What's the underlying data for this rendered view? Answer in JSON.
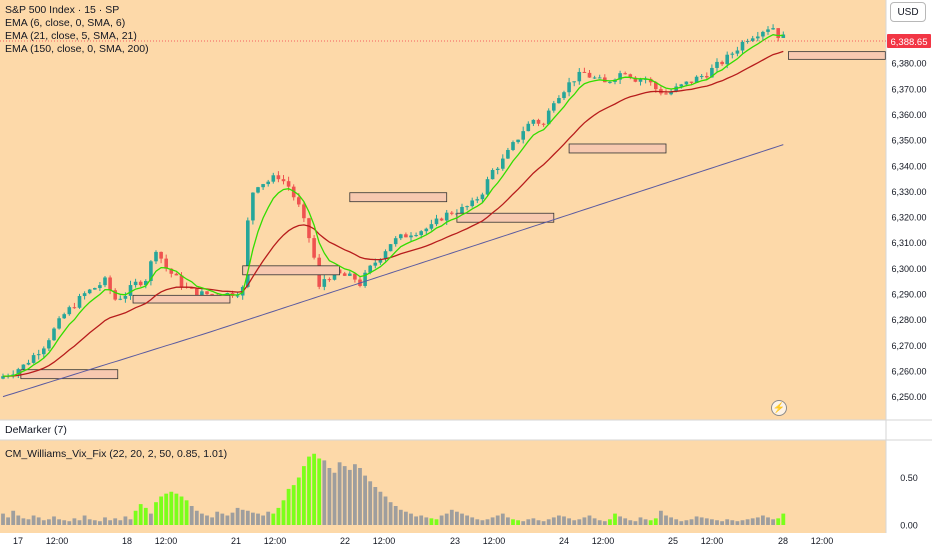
{
  "legend": {
    "symbol": "S&P 500 Index · 15 · SP",
    "ema_fast": "EMA (6, close, 0, SMA, 6)",
    "ema_mid": "EMA (21, close, 5, SMA, 21)",
    "ema_slow": "EMA (150, close, 0, SMA, 200)",
    "demarker": "DeMarker (7)",
    "vix_fix": "CM_Williams_Vix_Fix (22, 20, 2, 50, 0.85, 1.01)"
  },
  "currency_button": "USD",
  "bolt_icon": "lightning-icon",
  "colors": {
    "background": "#fdd9a9",
    "panel_background": "#ffffff",
    "up_candle": "#26a69a",
    "down_candle": "#ef5350",
    "ema_fast": "#33dd00",
    "ema_mid": "#b71c1c",
    "ema_slow": "#5a5aa0",
    "zone_fill": "#f7c9b0",
    "vix_gray": "#9e9e9e",
    "vix_green": "#7bff1a",
    "price_badge": "#f23645"
  },
  "chart_data": [
    {
      "type": "candlestick",
      "title": "S&P 500 Index · 15 · SP",
      "x_ticks": [
        "17",
        "12:00",
        "18",
        "12:00",
        "21",
        "12:00",
        "22",
        "12:00",
        "23",
        "12:00",
        "24",
        "12:00",
        "25",
        "12:00",
        "28",
        "12:00"
      ],
      "y_ticks": [
        "6,380.00",
        "6,370.00",
        "6,360.00",
        "6,350.00",
        "6,340.00",
        "6,330.00",
        "6,320.00",
        "6,310.00",
        "6,300.00",
        "6,290.00",
        "6,280.00",
        "6,270.00",
        "6,260.00",
        "6,250.00"
      ],
      "ylim": [
        6244,
        6400
      ],
      "last_price": "6,388.65",
      "price_path": [
        [
          0,
          6258
        ],
        [
          4,
          6262
        ],
        [
          8,
          6270
        ],
        [
          12,
          6282
        ],
        [
          16,
          6290
        ],
        [
          20,
          6295
        ],
        [
          22,
          6288
        ],
        [
          24,
          6290
        ],
        [
          26,
          6294
        ],
        [
          28,
          6296
        ],
        [
          30,
          6308
        ],
        [
          32,
          6300
        ],
        [
          34,
          6296
        ],
        [
          36,
          6292
        ],
        [
          38,
          6290
        ],
        [
          40,
          6290
        ],
        [
          42,
          6289
        ],
        [
          44,
          6290
        ],
        [
          46,
          6291
        ],
        [
          47,
          6292
        ],
        [
          48,
          6318
        ],
        [
          49,
          6330
        ],
        [
          50,
          6333
        ],
        [
          52,
          6334
        ],
        [
          54,
          6336
        ],
        [
          56,
          6332
        ],
        [
          58,
          6324
        ],
        [
          60,
          6312
        ],
        [
          61,
          6304
        ],
        [
          62,
          6292
        ],
        [
          63,
          6296
        ],
        [
          65,
          6298
        ],
        [
          67,
          6297
        ],
        [
          69,
          6296
        ],
        [
          70,
          6294
        ],
        [
          72,
          6300
        ],
        [
          74,
          6305
        ],
        [
          76,
          6310
        ],
        [
          78,
          6312
        ],
        [
          80,
          6314
        ],
        [
          84,
          6316
        ],
        [
          86,
          6320
        ],
        [
          88,
          6322
        ],
        [
          90,
          6323
        ],
        [
          92,
          6325
        ],
        [
          94,
          6330
        ],
        [
          96,
          6338
        ],
        [
          98,
          6342
        ],
        [
          100,
          6348
        ],
        [
          102,
          6354
        ],
        [
          104,
          6358
        ],
        [
          106,
          6356
        ],
        [
          108,
          6366
        ],
        [
          110,
          6370
        ],
        [
          112,
          6374
        ],
        [
          114,
          6376
        ],
        [
          116,
          6374
        ],
        [
          118,
          6372
        ],
        [
          120,
          6375
        ],
        [
          122,
          6377
        ],
        [
          124,
          6374
        ],
        [
          126,
          6374
        ],
        [
          128,
          6370
        ],
        [
          130,
          6368
        ],
        [
          132,
          6370
        ],
        [
          134,
          6372
        ],
        [
          136,
          6374
        ],
        [
          138,
          6376
        ],
        [
          140,
          6379
        ],
        [
          142,
          6382
        ],
        [
          144,
          6386
        ],
        [
          146,
          6390
        ],
        [
          148,
          6392
        ],
        [
          150,
          6394
        ],
        [
          151,
          6394
        ],
        [
          152,
          6391
        ],
        [
          153,
          6390
        ]
      ],
      "series": [
        {
          "name": "EMA (6, close, 0, SMA, 6)",
          "color": "#33dd00"
        },
        {
          "name": "EMA (21, close, 5, SMA, 21)",
          "color": "#b71c1c"
        },
        {
          "name": "EMA (150, close, 0, SMA, 200)",
          "color": "#5a5aa0"
        }
      ],
      "zones": [
        {
          "date_start": "17",
          "x0": 3.5,
          "x1": 22.5,
          "low": 6257,
          "high": 6260.5
        },
        {
          "date_start": "18",
          "x0": 25.5,
          "x1": 44.5,
          "low": 6286.5,
          "high": 6289.5
        },
        {
          "date_start": "21",
          "x0": 47,
          "x1": 66,
          "low": 6297.5,
          "high": 6301
        },
        {
          "date_start": "22",
          "x0": 68,
          "x1": 87,
          "low": 6326,
          "high": 6329.5
        },
        {
          "date_start": "23",
          "x0": 89,
          "x1": 108,
          "low": 6318,
          "high": 6321.5
        },
        {
          "date_start": "24",
          "x0": 111,
          "x1": 130,
          "low": 6345,
          "high": 6348.5
        },
        {
          "date_start": "28",
          "x0": 154,
          "x1": 173,
          "low": 6381.5,
          "high": 6384.5
        }
      ]
    },
    {
      "type": "bar",
      "title": "CM_Williams_Vix_Fix (22, 20, 2, 50, 0.85, 1.01)",
      "y_ticks": [
        "0.50",
        "0.00"
      ],
      "ylim": [
        0,
        0.85
      ],
      "values": [
        0.12,
        0.08,
        0.15,
        0.1,
        0.07,
        0.06,
        0.1,
        0.08,
        0.05,
        0.06,
        0.09,
        0.06,
        0.05,
        0.04,
        0.07,
        0.05,
        0.1,
        0.06,
        0.05,
        0.04,
        0.08,
        0.05,
        0.07,
        0.05,
        0.09,
        0.06,
        0.15,
        0.22,
        0.18,
        0.12,
        0.24,
        0.3,
        0.33,
        0.35,
        0.33,
        0.3,
        0.26,
        0.2,
        0.15,
        0.12,
        0.1,
        0.08,
        0.14,
        0.12,
        0.1,
        0.13,
        0.18,
        0.16,
        0.15,
        0.13,
        0.12,
        0.1,
        0.14,
        0.12,
        0.18,
        0.26,
        0.38,
        0.42,
        0.5,
        0.62,
        0.72,
        0.75,
        0.7,
        0.68,
        0.6,
        0.55,
        0.66,
        0.62,
        0.58,
        0.64,
        0.6,
        0.52,
        0.46,
        0.4,
        0.35,
        0.3,
        0.24,
        0.2,
        0.16,
        0.14,
        0.12,
        0.09,
        0.1,
        0.08,
        0.07,
        0.06,
        0.1,
        0.12,
        0.16,
        0.14,
        0.12,
        0.1,
        0.08,
        0.06,
        0.05,
        0.06,
        0.08,
        0.1,
        0.12,
        0.08,
        0.06,
        0.05,
        0.04,
        0.06,
        0.07,
        0.05,
        0.04,
        0.06,
        0.08,
        0.1,
        0.09,
        0.07,
        0.05,
        0.06,
        0.08,
        0.1,
        0.07,
        0.05,
        0.04,
        0.06,
        0.12,
        0.09,
        0.07,
        0.05,
        0.04,
        0.08,
        0.06,
        0.05,
        0.07,
        0.15,
        0.1,
        0.08,
        0.06,
        0.04,
        0.05,
        0.06,
        0.09,
        0.08,
        0.07,
        0.06,
        0.05,
        0.04,
        0.06,
        0.05,
        0.04,
        0.05,
        0.06,
        0.07,
        0.08,
        0.1,
        0.08,
        0.06,
        0.07,
        0.12
      ],
      "green_ranges": [
        [
          26,
          28
        ],
        [
          30,
          36
        ],
        [
          53,
          62
        ],
        [
          84,
          85
        ],
        [
          100,
          101
        ],
        [
          119,
          120
        ],
        [
          127,
          128
        ],
        [
          152,
          153
        ]
      ]
    }
  ]
}
